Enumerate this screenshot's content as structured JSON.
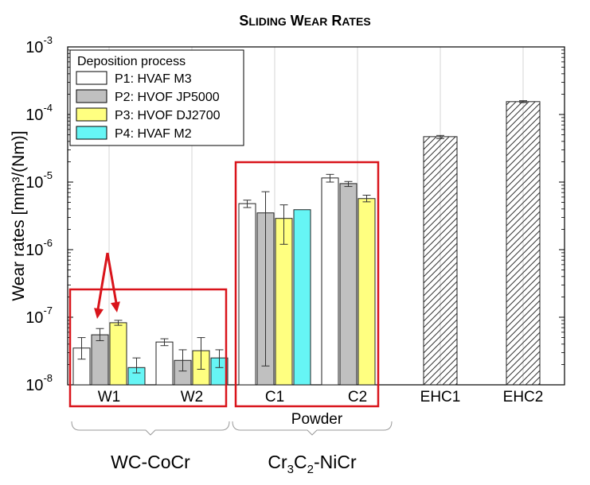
{
  "chart_data": {
    "type": "bar",
    "title_main": "Sliding wear rates",
    "ylabel": "Wear rates [mm³/(Nm)]",
    "yscale": "log",
    "ylim": [
      1e-08,
      0.001
    ],
    "y_ticks": [
      {
        "base": "10",
        "exp": "-8"
      },
      {
        "base": "10",
        "exp": "-7"
      },
      {
        "base": "10",
        "exp": "-6"
      },
      {
        "base": "10",
        "exp": "-5"
      },
      {
        "base": "10",
        "exp": "-4"
      },
      {
        "base": "10",
        "exp": "-3"
      }
    ],
    "categories": [
      "W1",
      "W2",
      "C1",
      "C2",
      "EHC1",
      "EHC2"
    ],
    "grid": "vertical",
    "legend": {
      "title": "Deposition process",
      "placement": "top-left",
      "entries": [
        "P1: HVAF M3",
        "P2: HVOF JP5000",
        "P3: HVOF DJ2700",
        "P4: HVAF M2"
      ]
    },
    "series_colors": [
      "#ffffff",
      "#c0c0c0",
      "#ffff80",
      "#66f5f5"
    ],
    "reference_color": "#ffffff",
    "highlight_color": "#d9141b",
    "series": [
      {
        "name": "P1: HVAF M3",
        "values": [
          3.5e-08,
          4.3e-08,
          4.8e-06,
          1.15e-05,
          null,
          null
        ],
        "err_low": [
          2.4e-08,
          3.8e-08,
          4.2e-06,
          1e-05,
          null,
          null
        ],
        "err_high": [
          5e-08,
          4.8e-08,
          5.4e-06,
          1.3e-05,
          null,
          null
        ]
      },
      {
        "name": "P2: HVOF JP5000",
        "values": [
          5.5e-08,
          2.3e-08,
          3.5e-06,
          9.5e-06,
          null,
          null
        ],
        "err_low": [
          4.5e-08,
          1.6e-08,
          1.9e-08,
          8.6e-06,
          null,
          null
        ],
        "err_high": [
          6.8e-08,
          3.3e-08,
          7.2e-06,
          1.02e-05,
          null,
          null
        ]
      },
      {
        "name": "P3: HVOF DJ2700",
        "values": [
          8.3e-08,
          3.2e-08,
          2.9e-06,
          5.7e-06,
          null,
          null
        ],
        "err_low": [
          7.6e-08,
          1.7e-08,
          1.2e-06,
          5.1e-06,
          null,
          null
        ],
        "err_high": [
          9e-08,
          5e-08,
          4.6e-06,
          6.4e-06,
          null,
          null
        ]
      },
      {
        "name": "P4: HVAF M2",
        "values": [
          1.8e-08,
          2.5e-08,
          3.9e-06,
          null,
          null,
          null
        ],
        "err_low": [
          1.5e-08,
          1.8e-08,
          null,
          null,
          null,
          null
        ],
        "err_high": [
          2.5e-08,
          3.3e-08,
          null,
          null,
          null,
          null
        ]
      },
      {
        "name": "EHC",
        "values": [
          null,
          null,
          null,
          null,
          4.7e-05,
          0.000155
        ],
        "err_low": [
          null,
          null,
          null,
          null,
          4.4e-05,
          0.00015
        ],
        "err_high": [
          null,
          null,
          null,
          null,
          4.9e-05,
          0.00016
        ]
      }
    ],
    "highlight_boxes": [
      {
        "categories": [
          "W1",
          "W2"
        ]
      },
      {
        "categories": [
          "C1",
          "C2"
        ]
      }
    ],
    "arrows": {
      "from_category": "W1",
      "to_series": [
        "P2: HVOF JP5000",
        "P3: HVOF DJ2700"
      ]
    },
    "annotations": {
      "powder": "Powder",
      "group1": "WC-CoCr",
      "group2_parts": [
        "Cr",
        "3",
        "C",
        "2",
        "-NiCr"
      ]
    }
  }
}
